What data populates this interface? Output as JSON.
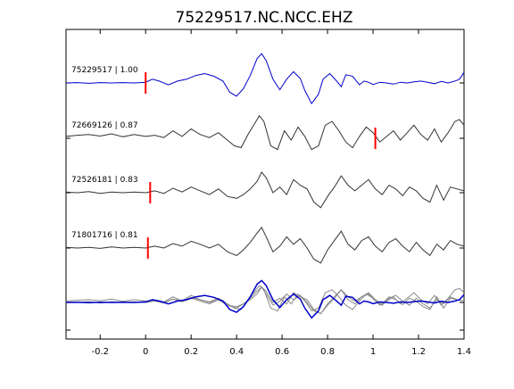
{
  "title": "75229517.NC.NCC.EHZ",
  "chart_data": {
    "type": "line",
    "title": "75229517.NC.NCC.EHZ",
    "xlabel": "",
    "ylabel": "",
    "xlim": [
      -0.35,
      1.4
    ],
    "x_ticks": [
      -0.2,
      0,
      0.2,
      0.4,
      0.6,
      0.8,
      1,
      1.2,
      1.4
    ],
    "x_tick_labels": [
      "-0.2",
      "0",
      "0.2",
      "0.4",
      "0.6",
      "0.8",
      "1",
      "1.2",
      "1.4"
    ],
    "y_ticks_count": 6,
    "grid": false,
    "series": [
      {
        "name": "75229517 | 1.00",
        "color": "#0000cc",
        "pick": 0.0,
        "x": [
          -0.35,
          -0.3,
          -0.25,
          -0.2,
          -0.15,
          -0.1,
          -0.05,
          0.0,
          0.03,
          0.06,
          0.1,
          0.14,
          0.18,
          0.22,
          0.26,
          0.3,
          0.34,
          0.37,
          0.4,
          0.43,
          0.46,
          0.49,
          0.51,
          0.53,
          0.56,
          0.59,
          0.62,
          0.65,
          0.68,
          0.7,
          0.73,
          0.76,
          0.78,
          0.81,
          0.84,
          0.86,
          0.88,
          0.91,
          0.94,
          0.96,
          0.98,
          1.0,
          1.03,
          1.06,
          1.09,
          1.12,
          1.15,
          1.18,
          1.21,
          1.24,
          1.27,
          1.3,
          1.33,
          1.36,
          1.38,
          1.4
        ],
        "y": [
          0.0,
          0.01,
          -0.01,
          0.01,
          0.0,
          0.01,
          0.0,
          0.02,
          0.1,
          0.05,
          -0.05,
          0.05,
          0.1,
          0.2,
          0.25,
          0.18,
          0.05,
          -0.25,
          -0.35,
          -0.15,
          0.2,
          0.65,
          0.78,
          0.6,
          0.1,
          -0.18,
          0.1,
          0.3,
          0.12,
          -0.2,
          -0.55,
          -0.3,
          0.1,
          0.25,
          0.05,
          -0.1,
          0.22,
          0.18,
          -0.05,
          0.05,
          0.02,
          -0.04,
          0.02,
          0.0,
          -0.03,
          0.02,
          0.0,
          0.03,
          0.05,
          0.02,
          -0.02,
          0.04,
          0.0,
          0.05,
          0.1,
          0.28
        ]
      },
      {
        "name": "72669126 | 0.87",
        "color": "#333333",
        "pick": 1.01,
        "x": [
          -0.35,
          -0.3,
          -0.25,
          -0.2,
          -0.15,
          -0.1,
          -0.05,
          0.0,
          0.04,
          0.08,
          0.12,
          0.16,
          0.2,
          0.24,
          0.28,
          0.32,
          0.36,
          0.39,
          0.42,
          0.45,
          0.48,
          0.5,
          0.52,
          0.55,
          0.58,
          0.61,
          0.64,
          0.67,
          0.7,
          0.73,
          0.76,
          0.79,
          0.82,
          0.85,
          0.88,
          0.91,
          0.94,
          0.97,
          1.0,
          1.03,
          1.06,
          1.09,
          1.12,
          1.15,
          1.18,
          1.21,
          1.24,
          1.27,
          1.3,
          1.33,
          1.36,
          1.38,
          1.4
        ],
        "y": [
          0.05,
          0.08,
          0.1,
          0.06,
          0.12,
          0.04,
          0.1,
          0.05,
          0.08,
          0.02,
          0.2,
          0.05,
          0.25,
          0.1,
          0.02,
          0.15,
          -0.05,
          -0.2,
          -0.25,
          0.1,
          0.4,
          0.6,
          0.45,
          -0.2,
          -0.3,
          0.2,
          -0.05,
          0.3,
          0.05,
          -0.3,
          -0.2,
          0.35,
          0.45,
          0.2,
          -0.1,
          -0.25,
          0.05,
          0.3,
          0.15,
          -0.1,
          0.05,
          0.2,
          -0.05,
          0.15,
          0.35,
          0.1,
          -0.05,
          0.25,
          -0.1,
          0.15,
          0.45,
          0.5,
          0.35
        ]
      },
      {
        "name": "72526181 | 0.83",
        "color": "#333333",
        "pick": 0.02,
        "x": [
          -0.35,
          -0.3,
          -0.25,
          -0.2,
          -0.15,
          -0.1,
          -0.05,
          0.0,
          0.04,
          0.08,
          0.12,
          0.16,
          0.2,
          0.24,
          0.28,
          0.32,
          0.36,
          0.4,
          0.43,
          0.46,
          0.49,
          0.51,
          0.53,
          0.56,
          0.59,
          0.62,
          0.65,
          0.68,
          0.71,
          0.74,
          0.77,
          0.8,
          0.83,
          0.86,
          0.89,
          0.92,
          0.95,
          0.98,
          1.01,
          1.04,
          1.07,
          1.1,
          1.13,
          1.16,
          1.19,
          1.22,
          1.25,
          1.28,
          1.31,
          1.34,
          1.37,
          1.4
        ],
        "y": [
          0.02,
          0.0,
          0.03,
          -0.02,
          0.02,
          0.0,
          0.02,
          0.0,
          0.05,
          -0.02,
          0.12,
          0.02,
          0.15,
          0.05,
          -0.05,
          0.1,
          -0.1,
          -0.15,
          -0.05,
          0.1,
          0.3,
          0.55,
          0.4,
          0.0,
          0.15,
          -0.05,
          0.35,
          0.2,
          0.1,
          -0.25,
          -0.4,
          -0.1,
          0.15,
          0.45,
          0.2,
          0.05,
          0.2,
          0.35,
          0.1,
          -0.05,
          0.2,
          0.1,
          -0.08,
          0.15,
          0.05,
          -0.15,
          -0.25,
          0.2,
          -0.2,
          0.15,
          0.1,
          0.05
        ]
      },
      {
        "name": "71801716 | 0.81",
        "color": "#333333",
        "pick": 0.01,
        "x": [
          -0.35,
          -0.3,
          -0.25,
          -0.2,
          -0.15,
          -0.1,
          -0.05,
          0.0,
          0.04,
          0.08,
          0.12,
          0.16,
          0.2,
          0.24,
          0.28,
          0.32,
          0.36,
          0.4,
          0.43,
          0.46,
          0.49,
          0.51,
          0.53,
          0.56,
          0.59,
          0.62,
          0.65,
          0.68,
          0.71,
          0.74,
          0.77,
          0.8,
          0.83,
          0.86,
          0.89,
          0.92,
          0.95,
          0.98,
          1.01,
          1.04,
          1.07,
          1.1,
          1.13,
          1.16,
          1.19,
          1.22,
          1.25,
          1.28,
          1.31,
          1.34,
          1.37,
          1.4
        ],
        "y": [
          0.02,
          0.0,
          0.02,
          -0.01,
          0.03,
          0.0,
          0.02,
          0.0,
          0.05,
          0.0,
          0.12,
          0.05,
          0.18,
          0.1,
          0.0,
          0.1,
          -0.1,
          -0.2,
          -0.05,
          0.15,
          0.4,
          0.55,
          0.3,
          -0.1,
          0.05,
          0.3,
          0.1,
          0.25,
          0.0,
          -0.3,
          -0.4,
          -0.05,
          0.2,
          0.45,
          0.1,
          -0.05,
          0.2,
          0.3,
          0.05,
          -0.1,
          0.15,
          0.25,
          0.05,
          -0.1,
          0.15,
          -0.05,
          -0.2,
          0.1,
          -0.05,
          0.2,
          0.1,
          0.05
        ]
      }
    ]
  }
}
